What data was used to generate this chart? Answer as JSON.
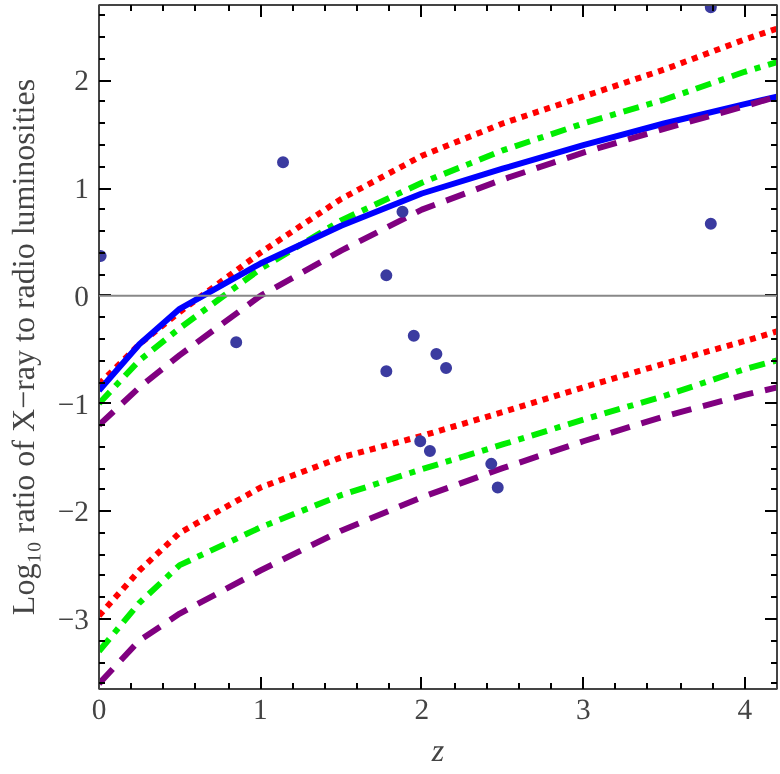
{
  "chart_data": {
    "type": "line",
    "xlabel": "z",
    "ylabel": "Log₁₀ ratio of X−ray to radio luminosities",
    "xlim": [
      0,
      4.2
    ],
    "ylim": [
      -3.65,
      2.7
    ],
    "xticks": [
      0,
      1,
      2,
      3,
      4
    ],
    "yticks": [
      -3,
      -2,
      -1,
      0,
      1,
      2
    ],
    "grid": false,
    "ref_lines": [
      {
        "axis": "y",
        "value": 0,
        "color": "#888888",
        "line_style": "solid"
      }
    ],
    "series": [
      {
        "color": "#ff0000",
        "line_style": "dotted",
        "x": [
          0,
          0.25,
          0.5,
          1,
          1.5,
          2,
          2.5,
          3,
          3.5,
          4,
          4.2
        ],
        "values": [
          -0.82,
          -0.45,
          -0.15,
          0.4,
          0.9,
          1.3,
          1.6,
          1.85,
          2.1,
          2.38,
          2.48
        ]
      },
      {
        "color": "#00ee00",
        "line_style": "dashdot",
        "x": [
          0,
          0.25,
          0.5,
          1,
          1.5,
          2,
          2.5,
          3,
          3.5,
          4,
          4.2
        ],
        "values": [
          -1.0,
          -0.6,
          -0.3,
          0.25,
          0.7,
          1.05,
          1.35,
          1.6,
          1.82,
          2.08,
          2.17
        ]
      },
      {
        "color": "#0000ff",
        "line_style": "solid",
        "x": [
          0,
          0.25,
          0.5,
          1,
          1.5,
          2,
          2.5,
          3,
          3.5,
          4,
          4.2
        ],
        "values": [
          -0.88,
          -0.45,
          -0.12,
          0.3,
          0.65,
          0.95,
          1.18,
          1.4,
          1.6,
          1.78,
          1.85
        ]
      },
      {
        "color": "#800080",
        "line_style": "dashed",
        "x": [
          0,
          0.25,
          0.5,
          1,
          1.5,
          2,
          2.5,
          3,
          3.5,
          4,
          4.2
        ],
        "values": [
          -1.2,
          -0.85,
          -0.55,
          0.0,
          0.42,
          0.8,
          1.08,
          1.33,
          1.55,
          1.76,
          1.85
        ]
      },
      {
        "color": "#ff0000",
        "line_style": "dotted",
        "x": [
          0,
          0.25,
          0.5,
          1,
          1.5,
          2,
          2.5,
          3,
          3.5,
          4,
          4.2
        ],
        "values": [
          -2.97,
          -2.55,
          -2.2,
          -1.78,
          -1.5,
          -1.3,
          -1.08,
          -0.85,
          -0.63,
          -0.42,
          -0.33
        ]
      },
      {
        "color": "#00ee00",
        "line_style": "dashdot",
        "x": [
          0,
          0.25,
          0.5,
          1,
          1.5,
          2,
          2.5,
          3,
          3.5,
          4,
          4.2
        ],
        "values": [
          -3.3,
          -2.85,
          -2.5,
          -2.15,
          -1.85,
          -1.61,
          -1.38,
          -1.15,
          -0.93,
          -0.68,
          -0.6
        ]
      },
      {
        "color": "#800080",
        "line_style": "dashed",
        "x": [
          0,
          0.25,
          0.5,
          1,
          1.5,
          2,
          2.5,
          3,
          3.5,
          4,
          4.2
        ],
        "values": [
          -3.6,
          -3.2,
          -2.95,
          -2.55,
          -2.18,
          -1.87,
          -1.6,
          -1.35,
          -1.12,
          -0.92,
          -0.85
        ]
      },
      {
        "type": "scatter",
        "color": "#3b3ba0",
        "marker": "circle",
        "x": [
          0.01,
          1.14,
          0.85,
          1.78,
          1.78,
          1.88,
          1.95,
          2.09,
          2.15,
          3.79,
          3.79,
          1.99,
          2.05,
          2.43,
          2.47
        ],
        "values": [
          0.37,
          1.24,
          -0.43,
          0.19,
          -0.7,
          0.78,
          -0.37,
          -0.54,
          -0.67,
          0.67,
          2.68,
          -1.35,
          -1.44,
          -1.56,
          -1.78
        ]
      }
    ]
  }
}
